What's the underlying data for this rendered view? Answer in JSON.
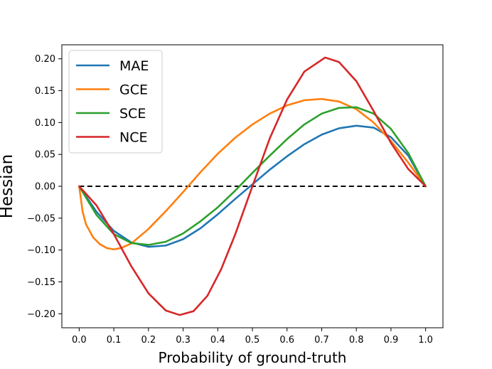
{
  "chart_data": {
    "type": "line",
    "title": "",
    "xlabel": "Probability of ground-truth",
    "ylabel": "Hessian",
    "xlim": [
      -0.05,
      1.05
    ],
    "ylim": [
      -0.222,
      0.222
    ],
    "xticks": [
      0.0,
      0.1,
      0.2,
      0.3,
      0.4,
      0.5,
      0.6,
      0.7,
      0.8,
      0.9,
      1.0
    ],
    "xtick_labels": [
      "0.0",
      "0.1",
      "0.2",
      "0.3",
      "0.4",
      "0.5",
      "0.6",
      "0.7",
      "0.8",
      "0.9",
      "1.0"
    ],
    "yticks": [
      -0.2,
      -0.15,
      -0.1,
      -0.05,
      0.0,
      0.05,
      0.1,
      0.15,
      0.2
    ],
    "ytick_labels": [
      "−0.20",
      "−0.15",
      "−0.10",
      "−0.05",
      "0.00",
      "0.05",
      "0.10",
      "0.15",
      "0.20"
    ],
    "grid": false,
    "legend_position": "top-left",
    "reference_line": {
      "y": 0.0,
      "x_range": [
        0.0,
        1.0
      ],
      "style": "dashed",
      "color": "#000000"
    },
    "series": [
      {
        "name": "MAE",
        "color": "#1f77b4",
        "x": [
          0.0,
          0.05,
          0.1,
          0.15,
          0.2,
          0.25,
          0.3,
          0.35,
          0.4,
          0.45,
          0.5,
          0.55,
          0.6,
          0.65,
          0.7,
          0.75,
          0.8,
          0.85,
          0.9,
          0.95,
          1.0
        ],
        "y": [
          0.0,
          -0.04,
          -0.07,
          -0.088,
          -0.095,
          -0.093,
          -0.083,
          -0.066,
          -0.044,
          -0.02,
          0.003,
          0.026,
          0.047,
          0.066,
          0.081,
          0.091,
          0.095,
          0.092,
          0.077,
          0.048,
          0.0
        ]
      },
      {
        "name": "GCE",
        "color": "#ff7f0e",
        "x": [
          0.0,
          0.01,
          0.02,
          0.04,
          0.06,
          0.08,
          0.1,
          0.12,
          0.15,
          0.2,
          0.25,
          0.3,
          0.35,
          0.4,
          0.45,
          0.5,
          0.55,
          0.6,
          0.65,
          0.7,
          0.75,
          0.8,
          0.85,
          0.9,
          0.95,
          1.0
        ],
        "y": [
          0.0,
          -0.04,
          -0.06,
          -0.08,
          -0.091,
          -0.097,
          -0.099,
          -0.097,
          -0.09,
          -0.067,
          -0.039,
          -0.009,
          0.022,
          0.051,
          0.076,
          0.097,
          0.114,
          0.127,
          0.135,
          0.137,
          0.133,
          0.121,
          0.1,
          0.071,
          0.037,
          0.0
        ]
      },
      {
        "name": "SCE",
        "color": "#2ca02c",
        "x": [
          0.0,
          0.05,
          0.1,
          0.15,
          0.2,
          0.25,
          0.3,
          0.35,
          0.4,
          0.45,
          0.5,
          0.55,
          0.6,
          0.65,
          0.7,
          0.75,
          0.8,
          0.85,
          0.9,
          0.95,
          1.0
        ],
        "y": [
          0.0,
          -0.045,
          -0.075,
          -0.089,
          -0.092,
          -0.087,
          -0.074,
          -0.055,
          -0.033,
          -0.007,
          0.021,
          0.048,
          0.074,
          0.097,
          0.114,
          0.123,
          0.124,
          0.114,
          0.09,
          0.052,
          0.0
        ]
      },
      {
        "name": "NCE",
        "color": "#d62728",
        "x": [
          0.0,
          0.05,
          0.1,
          0.15,
          0.2,
          0.25,
          0.29,
          0.33,
          0.37,
          0.41,
          0.45,
          0.5,
          0.55,
          0.6,
          0.65,
          0.71,
          0.75,
          0.8,
          0.85,
          0.9,
          0.95,
          1.0
        ],
        "y": [
          0.0,
          -0.03,
          -0.075,
          -0.125,
          -0.168,
          -0.195,
          -0.202,
          -0.196,
          -0.172,
          -0.13,
          -0.076,
          0.0,
          0.075,
          0.136,
          0.18,
          0.202,
          0.195,
          0.165,
          0.118,
          0.068,
          0.027,
          0.0
        ]
      }
    ]
  }
}
